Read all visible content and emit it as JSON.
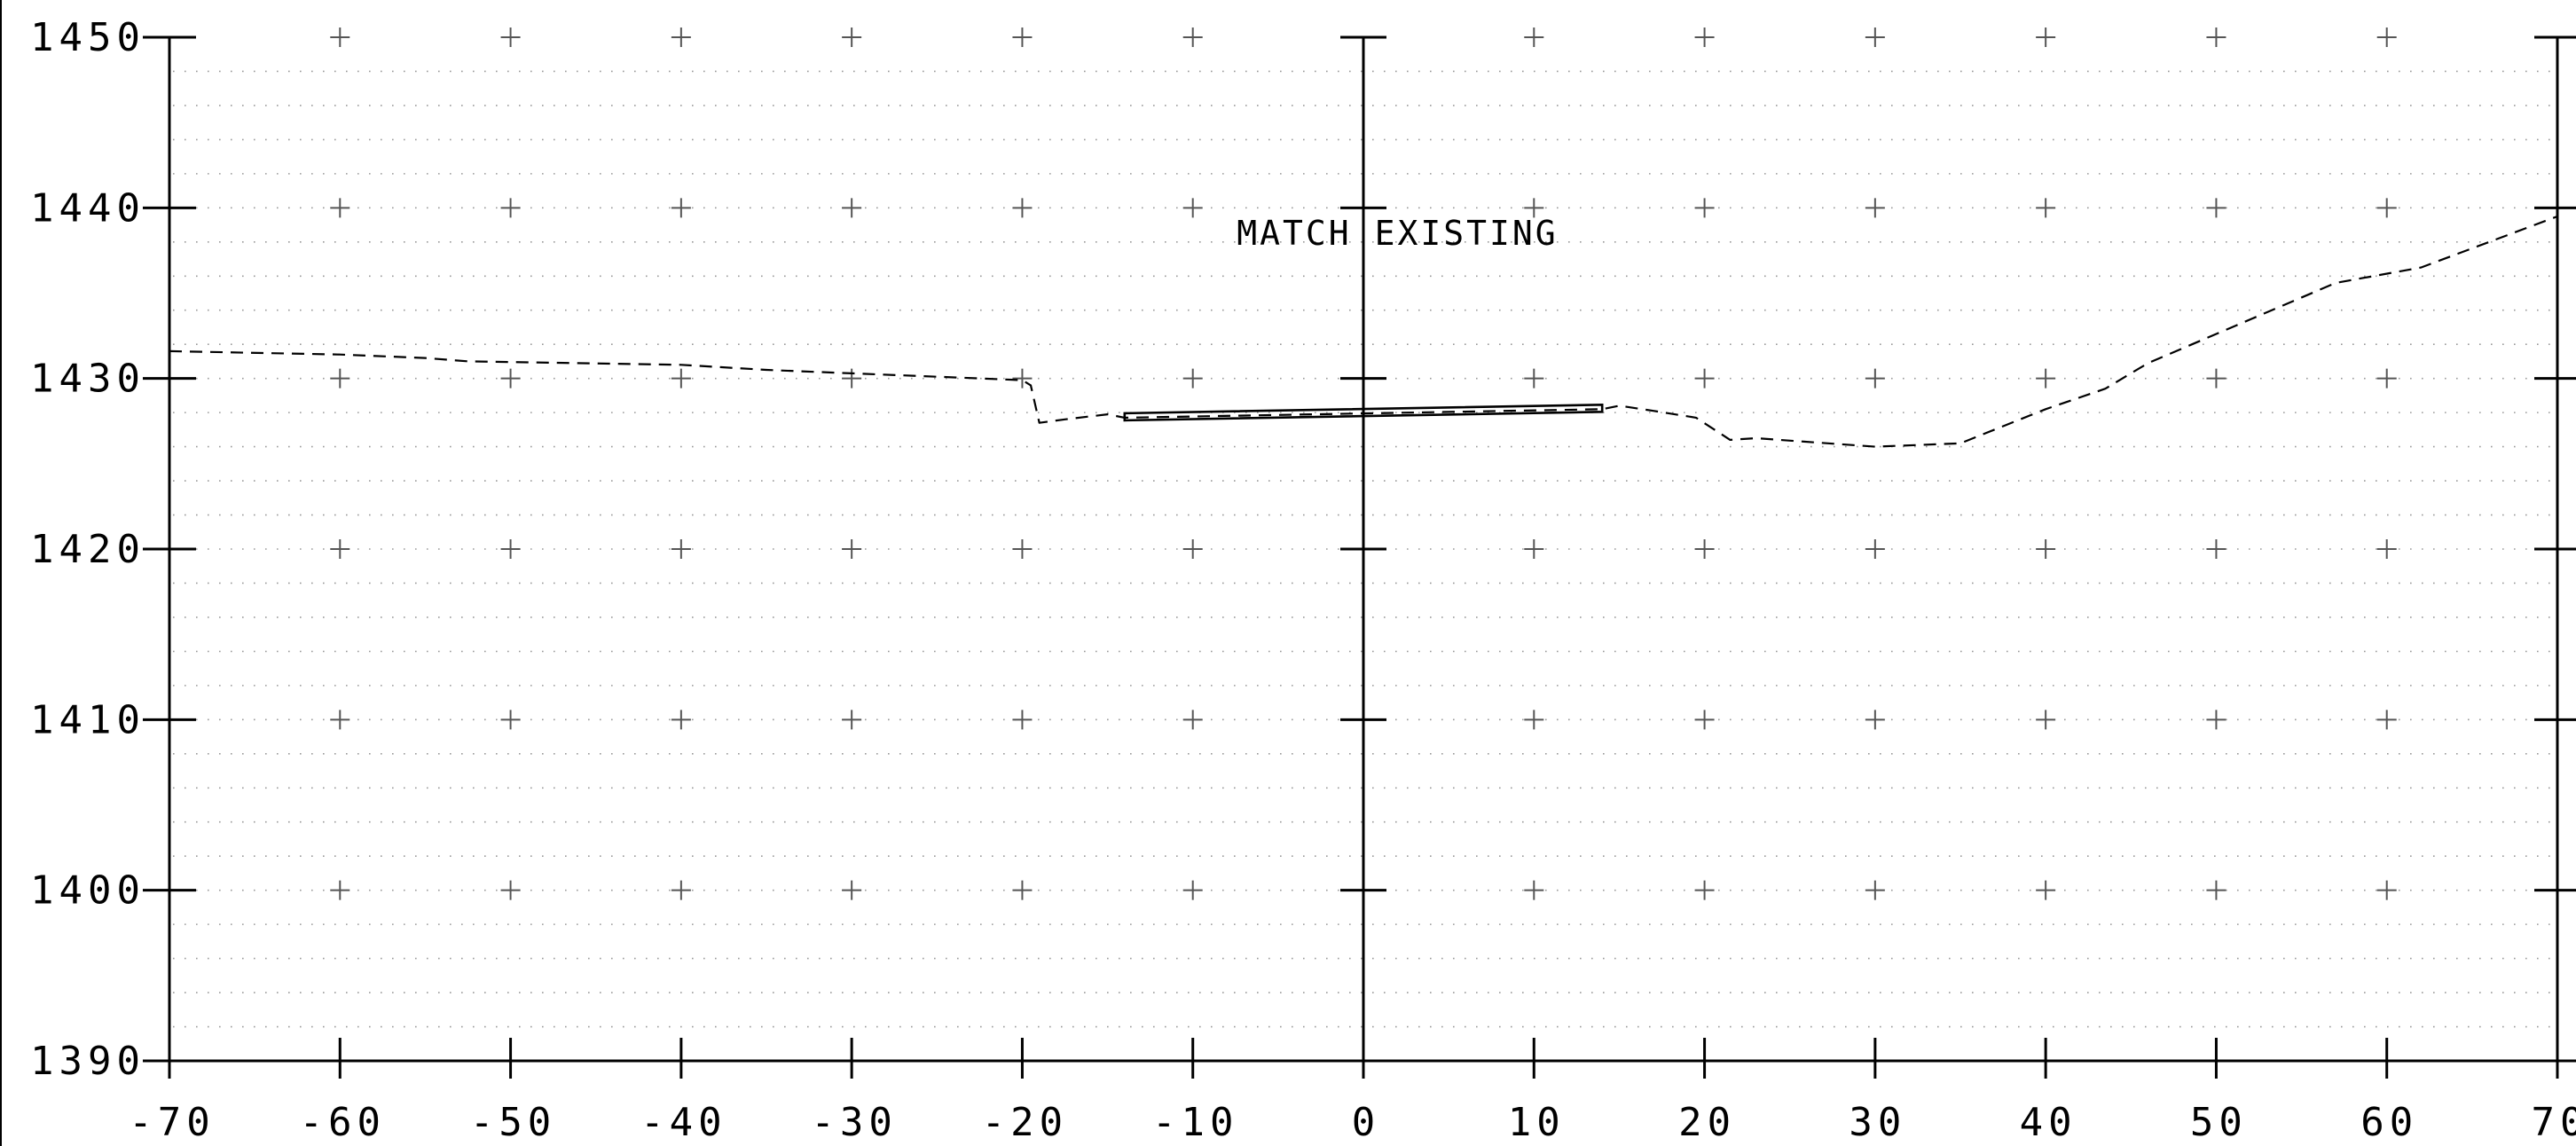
{
  "chart_data": {
    "type": "line",
    "title": "",
    "xlabel": "",
    "ylabel": "",
    "xlim": [
      -70,
      70
    ],
    "ylim": [
      1390,
      1450
    ],
    "x_ticks": [
      -70,
      -60,
      -50,
      -40,
      -30,
      -20,
      -10,
      0,
      10,
      20,
      30,
      40,
      50,
      60,
      70
    ],
    "x_tick_labels": [
      "-70",
      "-60",
      "-50",
      "-40",
      "-30",
      "-20",
      "-10",
      "0",
      "10",
      "20",
      "30",
      "40",
      "50",
      "60",
      "70"
    ],
    "y_ticks": [
      1390,
      1400,
      1410,
      1420,
      1430,
      1440,
      1450
    ],
    "y_tick_labels": [
      "1390",
      "1400",
      "1410",
      "1420",
      "1430",
      "1440",
      "1450"
    ],
    "grid": true,
    "annotations": [
      {
        "text": "MATCH EXISTING",
        "x": 2,
        "y": 1438.5
      }
    ],
    "series": [
      {
        "style": "dashed",
        "color": "#000000",
        "x": [
          -70,
          -60,
          -55,
          -52.5,
          -40,
          -35,
          -30,
          -25,
          -20,
          -19.5,
          -19,
          -17.5,
          -15,
          -14,
          14,
          15,
          17,
          19.5,
          21.5,
          23,
          30,
          35,
          40,
          43.5,
          46,
          57,
          62,
          70
        ],
        "y": [
          1431.6,
          1431.4,
          1431.2,
          1431.0,
          1430.8,
          1430.5,
          1430.3,
          1430.1,
          1429.9,
          1429.6,
          1427.4,
          1427.6,
          1427.9,
          1427.7,
          1428.2,
          1428.4,
          1428.1,
          1427.7,
          1426.4,
          1426.5,
          1426.0,
          1426.2,
          1428.2,
          1429.4,
          1430.9,
          1435.6,
          1436.5,
          1439.5
        ]
      },
      {
        "style": "double-solid",
        "color": "#000000",
        "x": [
          -14,
          14
        ],
        "y": [
          1427.7,
          1428.2
        ]
      }
    ]
  }
}
